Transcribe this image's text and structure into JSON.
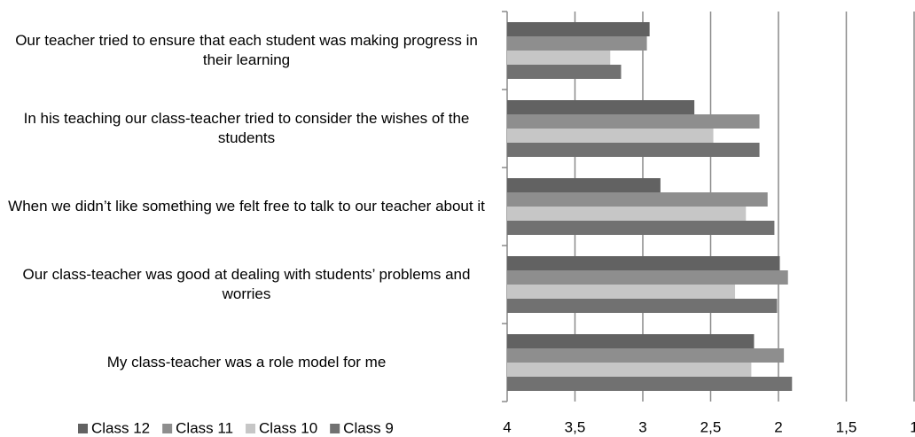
{
  "chart_data": {
    "type": "hbar",
    "categories": [
      "Our teacher tried to ensure that each student was making progress in their learning",
      "In his teaching our class-teacher tried to consider the wishes of the students",
      "When we didn’t like something we felt free to talk to our teacher about it",
      "Our class-teacher was good at dealing with students’ problems and worries",
      "My class-teacher was a role model for me"
    ],
    "series": [
      {
        "name": "Class 12",
        "color": "#626262",
        "values": [
          2.95,
          2.62,
          2.87,
          1.99,
          2.18
        ]
      },
      {
        "name": "Class 11",
        "color": "#8e8e8e",
        "values": [
          2.97,
          2.14,
          2.08,
          1.93,
          1.96
        ]
      },
      {
        "name": "Class 10",
        "color": "#c6c6c6",
        "values": [
          3.24,
          2.48,
          2.24,
          2.32,
          2.2
        ]
      },
      {
        "name": "Class 9",
        "color": "#717171",
        "values": [
          3.16,
          2.14,
          2.03,
          2.01,
          1.9
        ]
      }
    ],
    "xlim": [
      4,
      1
    ],
    "xticks": [
      4,
      {
        "value": 3.5,
        "label": "3,5"
      },
      3,
      {
        "value": 2.5,
        "label": "2,5"
      },
      2,
      {
        "value": 1.5,
        "label": "1,5"
      },
      1
    ],
    "grid": true,
    "legend": "bottom-left"
  }
}
